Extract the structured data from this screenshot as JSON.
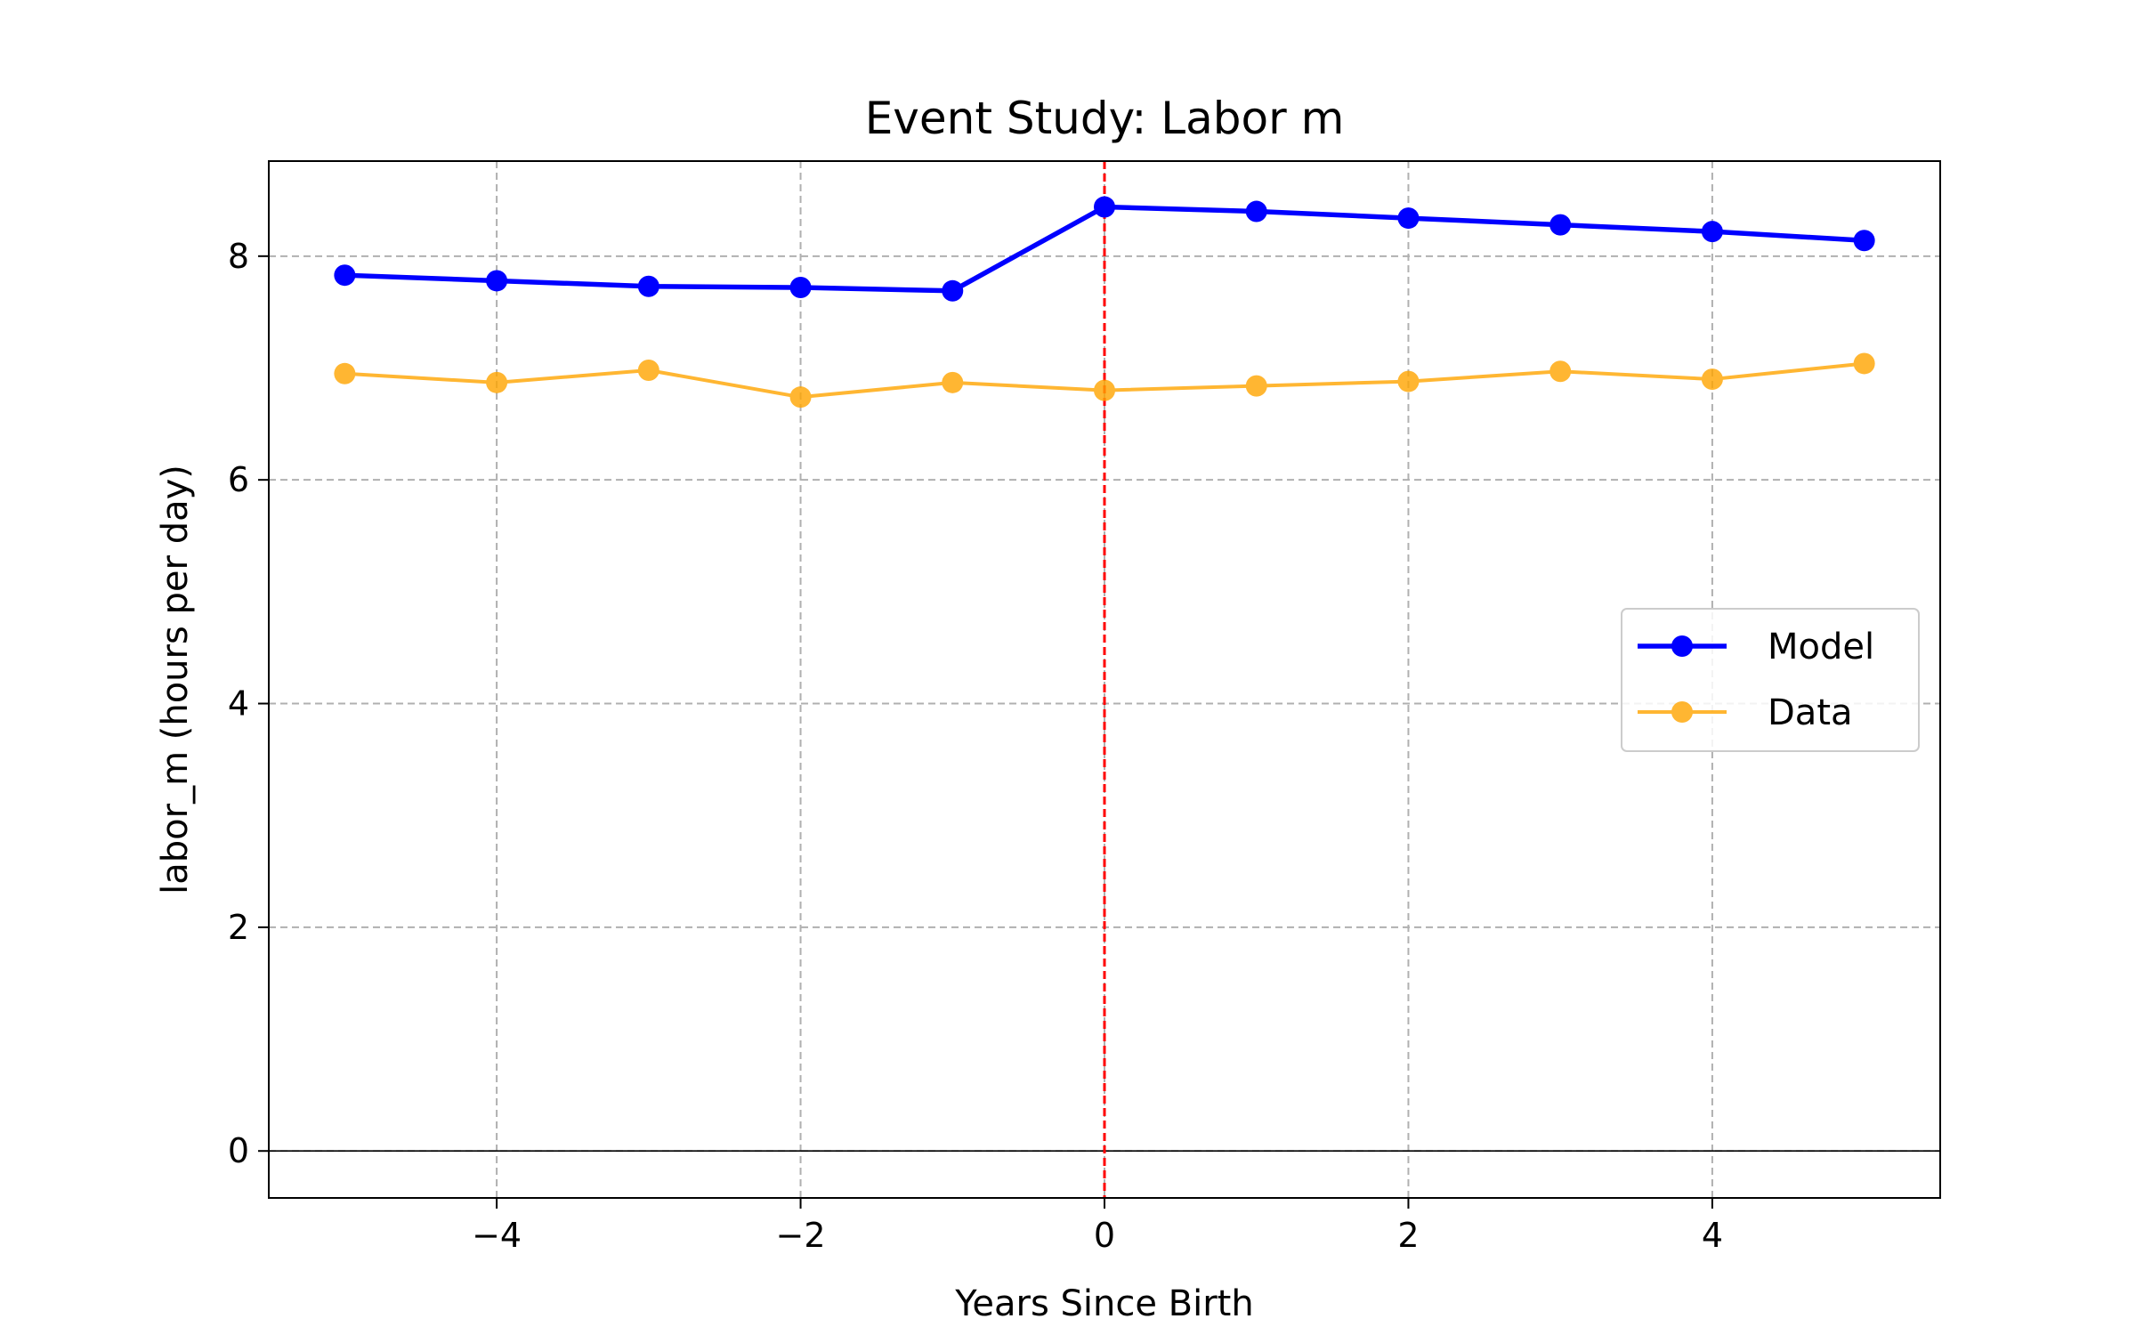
{
  "chart_data": {
    "type": "line",
    "title": "Event Study: Labor m",
    "xlabel": "Years Since Birth",
    "ylabel": "labor_m (hours per day)",
    "xlim": [
      -5.5,
      5.5
    ],
    "ylim": [
      -0.42,
      8.85
    ],
    "x_ticks": [
      -4,
      -2,
      0,
      2,
      4
    ],
    "x_tick_labels": [
      "−4",
      "−2",
      "0",
      "2",
      "4"
    ],
    "y_ticks": [
      0,
      2,
      4,
      6,
      8
    ],
    "y_tick_labels": [
      "0",
      "2",
      "4",
      "6",
      "8"
    ],
    "grid": true,
    "legend_position": "center-right",
    "reference_lines": {
      "vertical_x": 0,
      "vertical_color": "#ff0000",
      "horizontal_y": 0,
      "horizontal_color": "#000000"
    },
    "x": [
      -5,
      -4,
      -3,
      -2,
      -1,
      0,
      1,
      2,
      3,
      4,
      5
    ],
    "series": [
      {
        "name": "Model",
        "color": "#0000ff",
        "values": [
          7.83,
          7.78,
          7.73,
          7.72,
          7.69,
          8.44,
          8.4,
          8.34,
          8.28,
          8.22,
          8.14
        ]
      },
      {
        "name": "Data",
        "color": "#ffa500",
        "values": [
          6.95,
          6.87,
          6.98,
          6.74,
          6.87,
          6.8,
          6.84,
          6.88,
          6.97,
          6.9,
          7.04
        ]
      }
    ]
  }
}
